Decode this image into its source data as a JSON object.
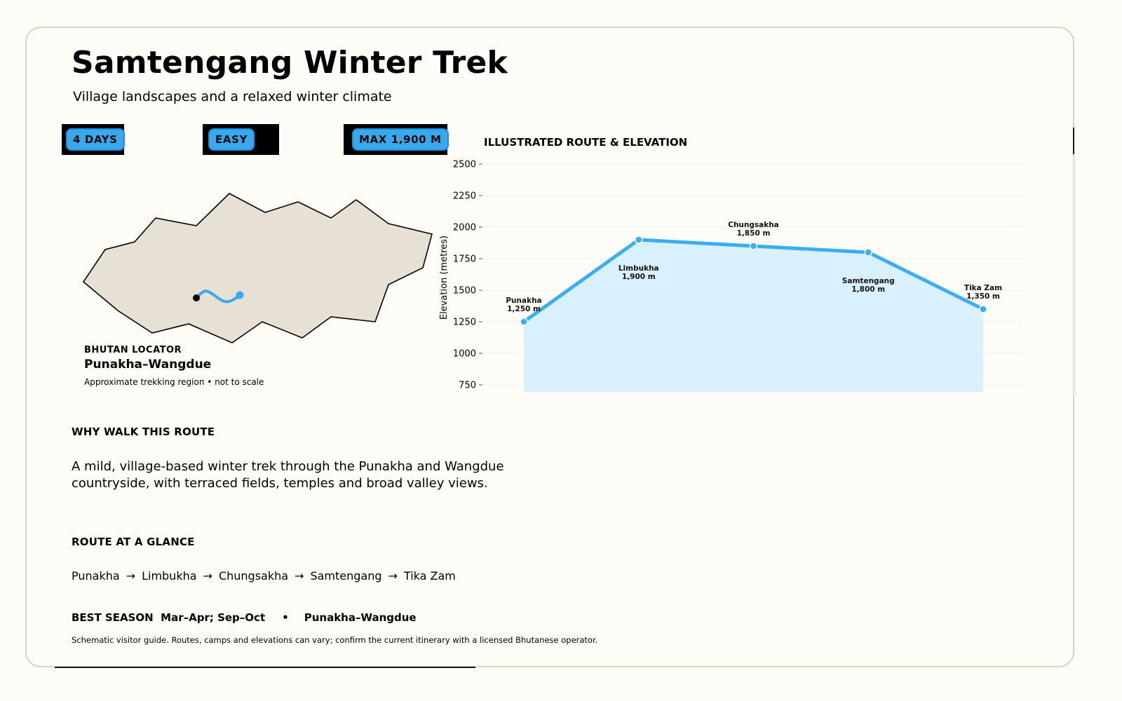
{
  "header": {
    "title": "Samtengang Winter Trek",
    "subtitle": "Village landscapes and a relaxed winter climate"
  },
  "chips": [
    {
      "label": "4 DAYS"
    },
    {
      "label": "EASY"
    },
    {
      "label": "MAX 1,900 M"
    }
  ],
  "locator": {
    "kicker": "BHUTAN LOCATOR",
    "region": "Punakha–Wangdue",
    "note": "Approximate trekking region • not to scale"
  },
  "why": {
    "heading": "WHY WALK THIS ROUTE",
    "text": "A mild, village-based winter trek through the Punakha and Wangdue countryside, with terraced fields, temples and broad valley views."
  },
  "route": {
    "heading": "ROUTE AT A GLANCE",
    "stops": [
      "Punakha",
      "Limbukha",
      "Chungsakha",
      "Samtengang",
      "Tika Zam"
    ],
    "arrow": "→"
  },
  "season": {
    "label": "BEST SEASON",
    "value": "Mar–Apr; Sep–Oct",
    "separator": "•",
    "region": "Punakha–Wangdue"
  },
  "footnote": "Schematic visitor guide. Routes, camps and elevations can vary; confirm the current itinerary with a licensed Bhutanese operator.",
  "chart_data": {
    "type": "area",
    "title": "ILLUSTRATED ROUTE & ELEVATION",
    "ylabel": "Elevation (metres)",
    "xlabel": "",
    "ylim": [
      700,
      2550
    ],
    "yticks": [
      750,
      1000,
      1250,
      1500,
      1750,
      2000,
      2250,
      2500
    ],
    "grid": true,
    "categories": [
      "Punakha",
      "Limbukha",
      "Chungsakha",
      "Samtengang",
      "Tika Zam"
    ],
    "values": [
      1250,
      1900,
      1850,
      1800,
      1350
    ],
    "point_labels": [
      "1,250 m",
      "1,900 m",
      "1,850 m",
      "1,800 m",
      "1,350 m"
    ],
    "label_position": [
      "above",
      "below",
      "above",
      "below",
      "above"
    ],
    "line_color": "#3aaef0",
    "fill_color": "#d9f1ff"
  },
  "colors": {
    "accent": "#3aa9ec",
    "map_fill": "#e7e0d4",
    "card_border": "#d8d3c2"
  }
}
